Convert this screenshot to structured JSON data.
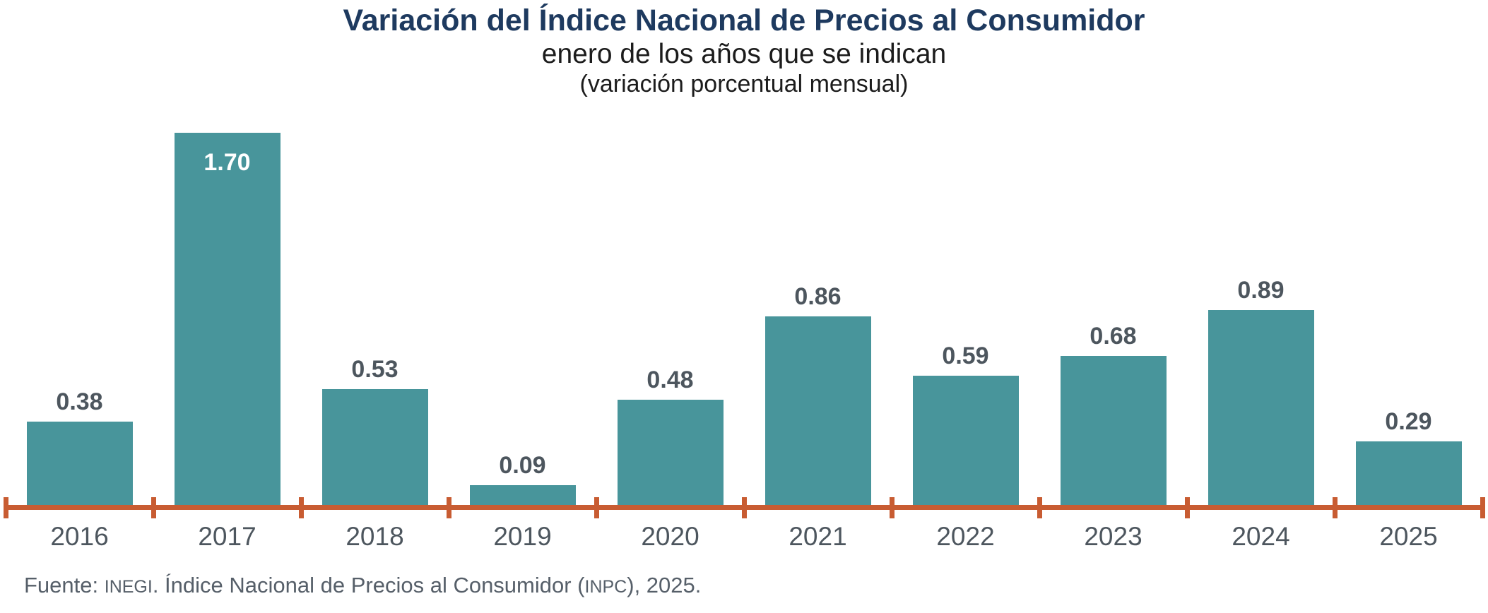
{
  "header": {
    "title": "Variación del Índice Nacional de Precios al Consumidor",
    "subtitle": "enero de los años que se indican",
    "note": "(variación porcentual mensual)"
  },
  "chart_data": {
    "type": "bar",
    "title": "Variación del Índice Nacional de Precios al Consumidor",
    "subtitle": "enero de los años que se indican",
    "note": "(variación porcentual mensual)",
    "categories": [
      "2016",
      "2017",
      "2018",
      "2019",
      "2020",
      "2021",
      "2022",
      "2023",
      "2024",
      "2025"
    ],
    "values": [
      0.38,
      1.7,
      0.53,
      0.09,
      0.48,
      0.86,
      0.59,
      0.68,
      0.89,
      0.29
    ],
    "value_labels": [
      "0.38",
      "1.70",
      "0.53",
      "0.09",
      "0.48",
      "0.86",
      "0.59",
      "0.68",
      "0.89",
      "0.29"
    ],
    "inside_label_category": "2017",
    "xlabel": "",
    "ylabel": "",
    "ylim": [
      0,
      1.8
    ],
    "grid": false,
    "legend": "none",
    "y_axis_shown": false,
    "bar_color": "#48959b",
    "axis_color": "#c85c32",
    "value_label_color": "#4d565e",
    "inside_value_label_color": "#ffffff",
    "title_color": "#1e3a5f"
  },
  "footer": {
    "parts": [
      {
        "text": "Fuente: ",
        "small": false
      },
      {
        "text": "INEGI",
        "small": true
      },
      {
        "text": ". Índice Nacional de Precios al Consumidor (",
        "small": false
      },
      {
        "text": "INPC",
        "small": true
      },
      {
        "text": "), 2025.",
        "small": false
      }
    ]
  }
}
